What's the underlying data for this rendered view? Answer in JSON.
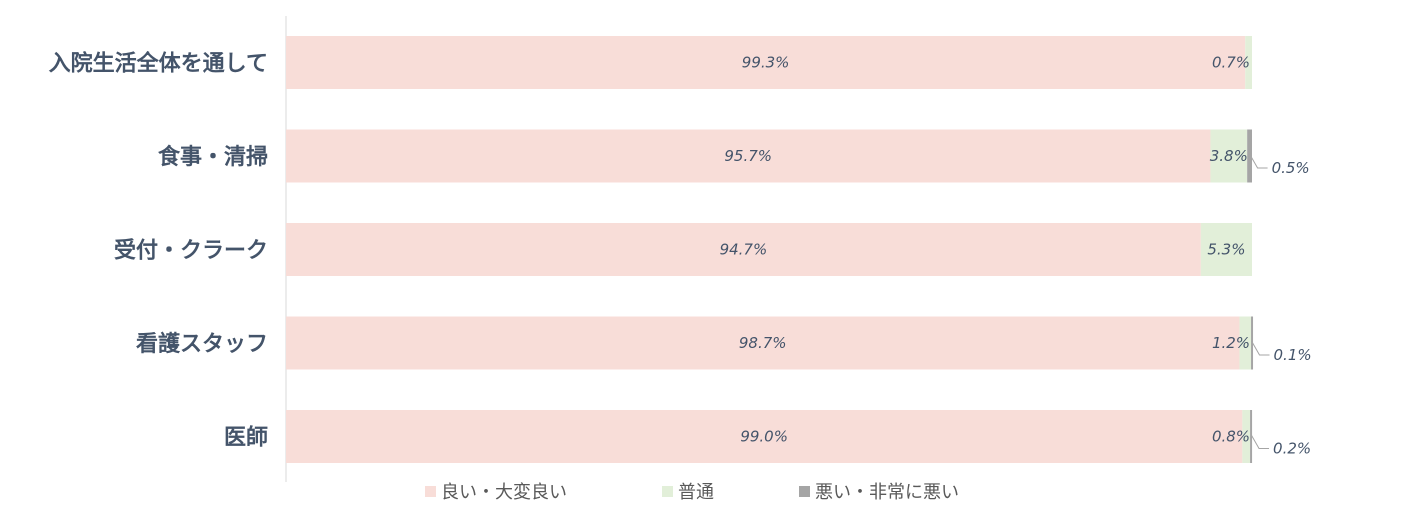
{
  "chart_data": {
    "type": "bar",
    "orientation": "horizontal",
    "stacked": true,
    "categories": [
      "入院生活全体を通して",
      "食事・清掃",
      "受付・クラーク",
      "看護スタッフ",
      "医師"
    ],
    "series": [
      {
        "name": "良い・大変良い",
        "color": "#f8ddd8",
        "values": [
          99.3,
          95.7,
          94.7,
          98.7,
          99.0
        ]
      },
      {
        "name": "普通",
        "color": "#e2efd9",
        "values": [
          0.7,
          3.8,
          5.3,
          1.2,
          0.8
        ]
      },
      {
        "name": "悪い・非常に悪い",
        "color": "#a5a5a5",
        "values": [
          0,
          0.5,
          0,
          0.1,
          0.2
        ]
      }
    ],
    "data_labels": [
      [
        "99.3%",
        "95.7%",
        "94.7%",
        "98.7%",
        "99.0%"
      ],
      [
        "0.7%",
        "3.8%",
        "5.3%",
        "1.2%",
        "0.8%"
      ],
      [
        "",
        "0.5%",
        "",
        "0.1%",
        "0.2%"
      ]
    ],
    "xlim": [
      0,
      100
    ],
    "unit": "%",
    "legend_position": "bottom",
    "grid": false
  }
}
